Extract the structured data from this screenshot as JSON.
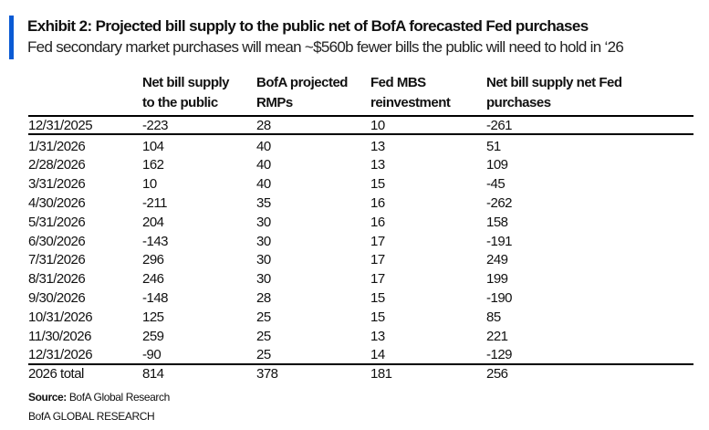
{
  "title": "Exhibit 2: Projected bill supply to the public net of BofA forecasted Fed purchases",
  "subtitle": "Fed secondary market purchases will mean ~$560b fewer bills the public will need to hold in ‘26",
  "accent_color": "#0a5ad4",
  "columns": [
    {
      "line1": "",
      "line2": ""
    },
    {
      "line1": "Net bill supply",
      "line2": "to the public"
    },
    {
      "line1": "BofA projected",
      "line2": "RMPs"
    },
    {
      "line1": "Fed MBS",
      "line2": "reinvestment"
    },
    {
      "line1": "Net bill supply net Fed",
      "line2": "purchases"
    }
  ],
  "rows": [
    [
      "12/31/2025",
      "-223",
      "28",
      "10",
      "-261"
    ],
    [
      "1/31/2026",
      "104",
      "40",
      "13",
      "51"
    ],
    [
      "2/28/2026",
      "162",
      "40",
      "13",
      "109"
    ],
    [
      "3/31/2026",
      "10",
      "40",
      "15",
      "-45"
    ],
    [
      "4/30/2026",
      "-211",
      "35",
      "16",
      "-262"
    ],
    [
      "5/31/2026",
      "204",
      "30",
      "16",
      "158"
    ],
    [
      "6/30/2026",
      "-143",
      "30",
      "17",
      "-191"
    ],
    [
      "7/31/2026",
      "296",
      "30",
      "17",
      "249"
    ],
    [
      "8/31/2026",
      "246",
      "30",
      "17",
      "199"
    ],
    [
      "9/30/2026",
      "-148",
      "28",
      "15",
      "-190"
    ],
    [
      "10/31/2026",
      "125",
      "25",
      "15",
      "85"
    ],
    [
      "11/30/2026",
      "259",
      "25",
      "13",
      "221"
    ],
    [
      "12/31/2026",
      "-90",
      "25",
      "14",
      "-129"
    ]
  ],
  "total": [
    "2026 total",
    "814",
    "378",
    "181",
    "256"
  ],
  "source_label": "Source:",
  "source_text": " BofA Global Research",
  "footer": "BofA GLOBAL RESEARCH"
}
